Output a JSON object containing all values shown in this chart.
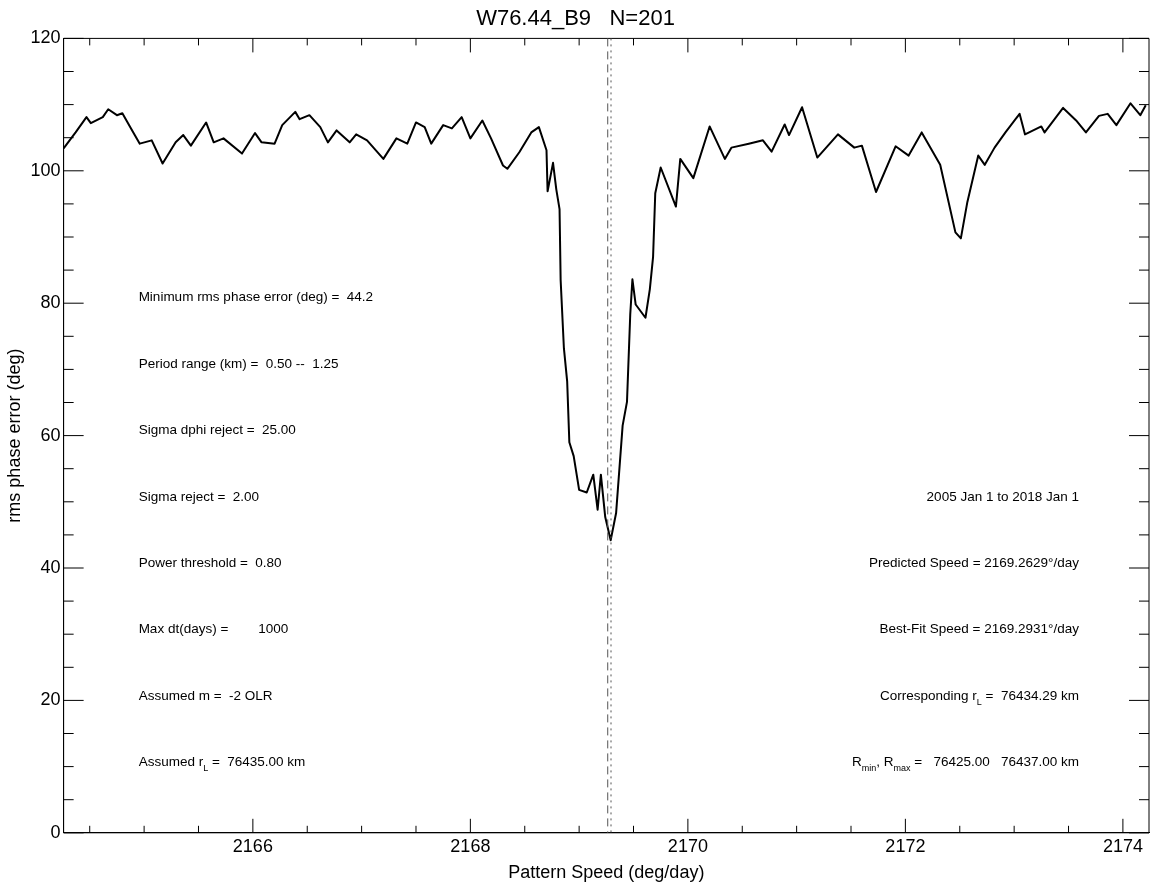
{
  "chart_data": {
    "type": "line",
    "title": "W76.44_B9   N=201",
    "xlabel": "Pattern Speed (deg/day)",
    "ylabel": "rms phase error (deg)",
    "series": [
      {
        "color": "#000000",
        "x": [
          2164.26,
          2164.37,
          2164.47,
          2164.51,
          2164.62,
          2164.67,
          2164.75,
          2164.8,
          2164.89,
          2164.96,
          2165.07,
          2165.17,
          2165.29,
          2165.36,
          2165.43,
          2165.57,
          2165.64,
          2165.73,
          2165.9,
          2166.02,
          2166.08,
          2166.2,
          2166.27,
          2166.39,
          2166.43,
          2166.52,
          2166.62,
          2166.69,
          2166.77,
          2166.89,
          2166.95,
          2167.05,
          2167.2,
          2167.32,
          2167.42,
          2167.5,
          2167.58,
          2167.64,
          2167.75,
          2167.83,
          2167.92,
          2168.0,
          2168.11,
          2168.19,
          2168.3,
          2168.34,
          2168.45,
          2168.56,
          2168.63,
          2168.7,
          2168.71,
          2168.76,
          2168.79,
          2168.82,
          2168.83,
          2168.86,
          2168.89,
          2168.91,
          2168.95,
          2169.0,
          2169.07,
          2169.13,
          2169.17,
          2169.2,
          2169.24,
          2169.29,
          2169.34,
          2169.4,
          2169.44,
          2169.47,
          2169.49,
          2169.52,
          2169.61,
          2169.65,
          2169.68,
          2169.7,
          2169.75,
          2169.89,
          2169.93,
          2170.05,
          2170.2,
          2170.34,
          2170.4,
          2170.56,
          2170.69,
          2170.77,
          2170.89,
          2170.93,
          2171.05,
          2171.19,
          2171.38,
          2171.53,
          2171.6,
          2171.73,
          2171.91,
          2172.03,
          2172.15,
          2172.32,
          2172.46,
          2172.51,
          2172.57,
          2172.67,
          2172.73,
          2172.82,
          2172.92,
          2173.05,
          2173.1,
          2173.25,
          2173.28,
          2173.45,
          2173.57,
          2173.66,
          2173.78,
          2173.86,
          2173.94,
          2174.07,
          2174.16,
          2174.21
        ],
        "values": [
          103.4,
          105.8,
          108.1,
          107.2,
          108.1,
          109.3,
          108.4,
          108.7,
          106.1,
          104.1,
          104.6,
          101.1,
          104.3,
          105.4,
          103.8,
          107.3,
          104.3,
          104.9,
          102.6,
          105.7,
          104.3,
          104.1,
          106.9,
          108.9,
          107.8,
          108.4,
          106.6,
          104.3,
          106.1,
          104.3,
          105.5,
          104.6,
          101.8,
          104.9,
          104.1,
          107.3,
          106.6,
          104.1,
          106.9,
          106.4,
          108.1,
          104.9,
          107.6,
          104.9,
          100.8,
          100.3,
          102.8,
          105.8,
          106.6,
          103.1,
          96.9,
          101.2,
          97.2,
          94.2,
          83.5,
          73.2,
          68.2,
          59.0,
          56.9,
          51.8,
          51.4,
          54.1,
          48.8,
          54.1,
          47.7,
          44.2,
          48.3,
          61.5,
          65.1,
          78.3,
          83.6,
          79.8,
          77.8,
          82.1,
          87.0,
          96.6,
          100.5,
          94.6,
          101.8,
          98.9,
          106.7,
          101.8,
          103.5,
          104.1,
          104.6,
          102.9,
          107.0,
          105.4,
          109.6,
          102.0,
          105.5,
          103.5,
          103.8,
          96.8,
          103.7,
          102.3,
          105.8,
          100.9,
          90.7,
          89.8,
          95.3,
          102.3,
          100.9,
          103.5,
          105.8,
          108.6,
          105.5,
          106.7,
          105.8,
          109.5,
          107.6,
          105.8,
          108.3,
          108.6,
          106.9,
          110.2,
          108.4,
          109.9
        ]
      }
    ],
    "xlim": [
      2164.26,
      2174.24
    ],
    "xticks": [
      {
        "value": 2164.5,
        "label": null
      },
      {
        "value": 2165,
        "label": null
      },
      {
        "value": 2165.5,
        "label": null
      },
      2166,
      {
        "value": 2166.5,
        "label": null
      },
      {
        "value": 2167,
        "label": null
      },
      {
        "value": 2167.5,
        "label": null
      },
      2168,
      {
        "value": 2168.5,
        "label": null
      },
      {
        "value": 2169,
        "label": null
      },
      {
        "value": 2169.5,
        "label": null
      },
      2170,
      {
        "value": 2170.5,
        "label": null
      },
      {
        "value": 2171,
        "label": null
      },
      {
        "value": 2171.5,
        "label": null
      },
      2172,
      {
        "value": 2172.5,
        "label": null
      },
      {
        "value": 2173,
        "label": null
      },
      {
        "value": 2173.5,
        "label": null
      },
      2174
    ],
    "ylim": [
      0,
      120
    ],
    "yticks": [
      0,
      {
        "value": 5,
        "label": null
      },
      {
        "value": 10,
        "label": null
      },
      {
        "value": 15,
        "label": null
      },
      20,
      {
        "value": 25,
        "label": null
      },
      {
        "value": 30,
        "label": null
      },
      {
        "value": 35,
        "label": null
      },
      40,
      {
        "value": 45,
        "label": null
      },
      {
        "value": 50,
        "label": null
      },
      {
        "value": 55,
        "label": null
      },
      60,
      {
        "value": 65,
        "label": null
      },
      {
        "value": 70,
        "label": null
      },
      {
        "value": 75,
        "label": null
      },
      80,
      {
        "value": 85,
        "label": null
      },
      {
        "value": 90,
        "label": null
      },
      {
        "value": 95,
        "label": null
      },
      100,
      {
        "value": 105,
        "label": null
      },
      {
        "value": 110,
        "label": null
      },
      {
        "value": 115,
        "label": null
      },
      120
    ],
    "ref_lines": [
      {
        "axis": "x",
        "value": 2169.2629,
        "color": "#555555",
        "line_style": "dashed"
      },
      {
        "axis": "x",
        "value": 2169.2931,
        "color": "#555555",
        "line_style": "dotted"
      }
    ],
    "annotations": [
      "Minimum rms phase error (deg) =  44.2",
      "Period range (km) =  0.50 --  1.25",
      "Sigma dphi reject =  25.00",
      "Sigma reject =  2.00",
      "Power threshold =  0.80",
      "Max dt(days) =        1000",
      "Assumed m =  -2 OLR",
      "Assumed r$_{L}$ =  76435.00 km",
      "2005 Jan 1 to 2018 Jan 1",
      "Predicted Speed = 2169.2629°/day",
      "Best-Fit Speed = 2169.2931°/day",
      "Corresponding r$_{L}$ =  76434.29 km",
      "R$_{min}$, R$_{max}$ =   76425.00   76437.00 km"
    ],
    "grid": false,
    "legend": false,
    "marker": "none",
    "line_style": "solid"
  }
}
